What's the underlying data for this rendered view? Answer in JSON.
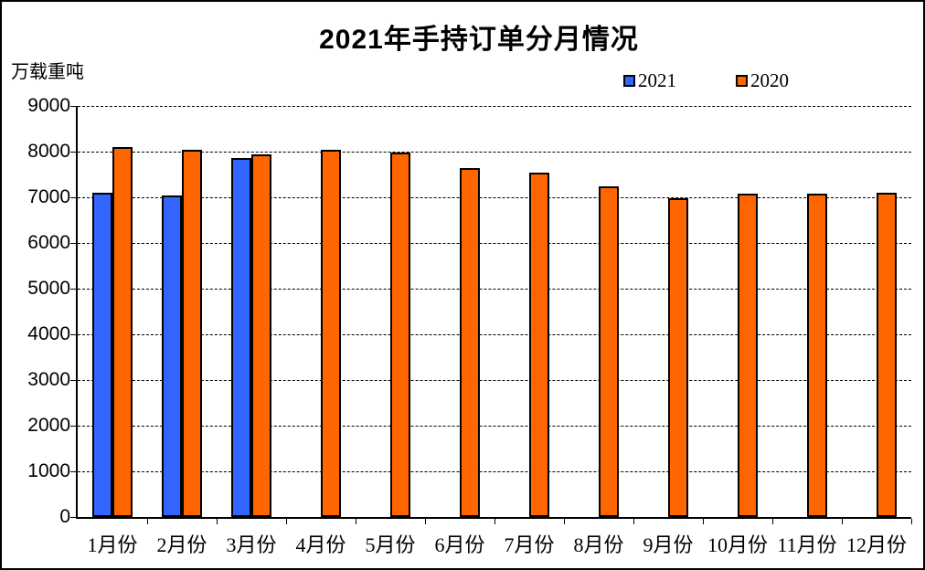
{
  "title": "2021年手持订单分月情况",
  "unit_label": "万载重吨",
  "legend": {
    "items": [
      {
        "label": "2021",
        "color": "#3366FF"
      },
      {
        "label": "2020",
        "color": "#FF6600"
      }
    ]
  },
  "chart_data": {
    "type": "bar",
    "title": "2021年手持订单分月情况",
    "ylabel": "万载重吨",
    "categories": [
      "1月份",
      "2月份",
      "3月份",
      "4月份",
      "5月份",
      "6月份",
      "7月份",
      "8月份",
      "9月份",
      "10月份",
      "11月份",
      "12月份"
    ],
    "series": [
      {
        "name": "2021",
        "color": "#3366FF",
        "values": [
          7100,
          7050,
          7860,
          null,
          null,
          null,
          null,
          null,
          null,
          null,
          null,
          null
        ]
      },
      {
        "name": "2020",
        "color": "#FF6600",
        "values": [
          8100,
          8040,
          7950,
          8050,
          7990,
          7650,
          7550,
          7250,
          6980,
          7090,
          7090,
          7110
        ]
      }
    ],
    "ylim": [
      0,
      9000
    ],
    "ytick_step": 1000,
    "grid": "dashed-horizontal",
    "legend_position": "top-right",
    "bar_border_color": "#000000"
  }
}
